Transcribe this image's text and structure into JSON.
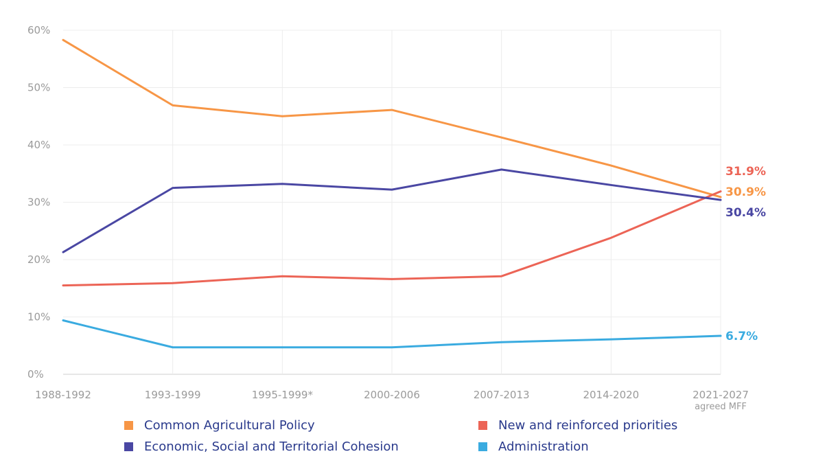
{
  "chart_data": {
    "type": "line",
    "categories": [
      "1988-1992",
      "1993-1999",
      "1995-1999*",
      "2000-2006",
      "2007-2013",
      "2014-2020",
      "2021-2027"
    ],
    "category_sublabels": [
      "",
      "",
      "",
      "",
      "",
      "",
      "agreed MFF"
    ],
    "ylim": [
      0,
      60
    ],
    "yticks": [
      0,
      10,
      20,
      30,
      40,
      50,
      60
    ],
    "ytick_labels": [
      "0%",
      "10%",
      "20%",
      "30%",
      "40%",
      "50%",
      "60%"
    ],
    "grid": true,
    "legend_position": "bottom",
    "series": [
      {
        "name": "Common Agricultural Policy",
        "color": "#f79646",
        "values": [
          58.3,
          46.9,
          45.0,
          46.1,
          41.3,
          36.4,
          30.9
        ],
        "end_label": "30.9%"
      },
      {
        "name": "New and reinforced priorities",
        "color": "#ec6456",
        "values": [
          15.5,
          15.9,
          17.1,
          16.6,
          17.1,
          23.8,
          31.9
        ],
        "end_label": "31.9%"
      },
      {
        "name": "Economic, Social and Territorial Cohesion",
        "color": "#4a47a3",
        "values": [
          21.3,
          32.5,
          33.2,
          32.2,
          35.7,
          33.0,
          30.4
        ],
        "end_label": "30.4%"
      },
      {
        "name": "Administration",
        "color": "#3aabe0",
        "values": [
          9.4,
          4.7,
          4.7,
          4.7,
          5.6,
          6.1,
          6.7
        ],
        "end_label": "6.7%"
      }
    ]
  }
}
